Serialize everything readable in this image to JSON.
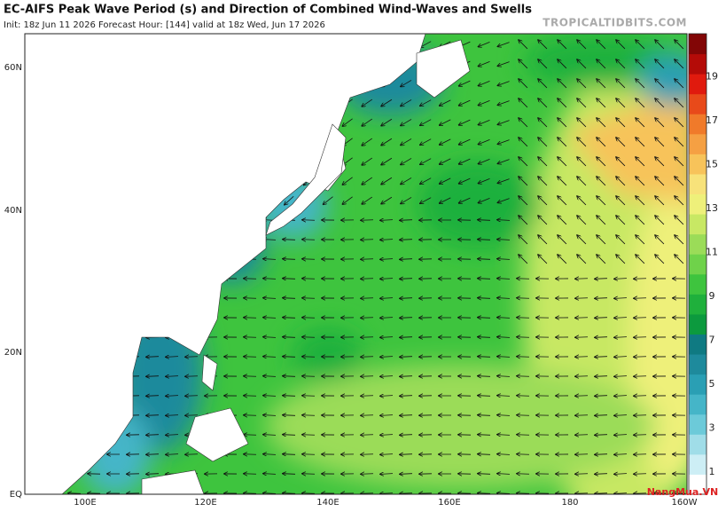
{
  "header": {
    "title": "EC-AIFS Peak Wave Period (s) and Direction of Combined Wind-Waves and Swells",
    "subtitle": "Init: 18z Jun 11 2026   Forecast Hour: [144]   valid at 18z Wed, Jun 17 2026",
    "site": "TROPICALTIDBITS.COM"
  },
  "map": {
    "lat_labels": [
      "60N",
      "40N",
      "20N",
      "EQ"
    ],
    "lon_labels": [
      "100E",
      "120E",
      "140E",
      "160E",
      "180",
      "160W"
    ]
  },
  "colorbar": {
    "labels": [
      "1",
      "3",
      "5",
      "7",
      "9",
      "11",
      "13",
      "15",
      "17",
      "19"
    ],
    "colors": [
      "#ffffff",
      "#cdeef5",
      "#a0dde8",
      "#6ccad9",
      "#45b5c8",
      "#2a9fb4",
      "#1e8a9c",
      "#0f7a82",
      "#0c9a3e",
      "#1fb03c",
      "#3ec43e",
      "#6fd24a",
      "#9bdc58",
      "#c8e864",
      "#eef07a",
      "#f7e27a",
      "#f7c35a",
      "#f5a043",
      "#f07a2a",
      "#e84a1a",
      "#e01a0e",
      "#b40b08",
      "#820606"
    ]
  },
  "watermark": "NangMua.VN"
}
